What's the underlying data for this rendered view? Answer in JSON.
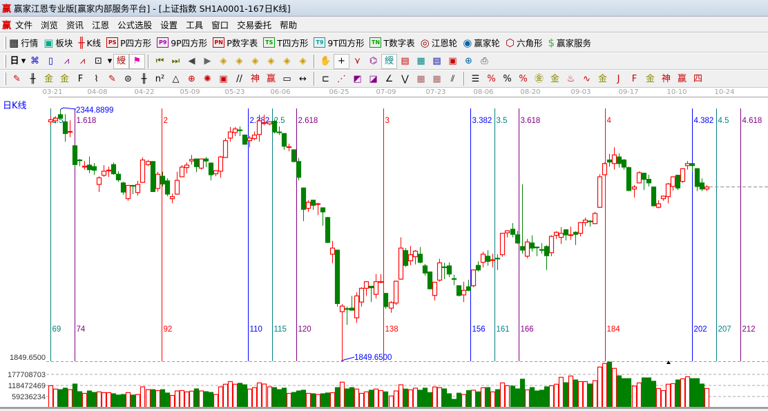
{
  "window": {
    "logo": "赢",
    "title": "赢家江恩专业版[赢家内部服务平台] - [上证指数  SH1A0001-167日K线]"
  },
  "menu": {
    "logo": "赢",
    "items": [
      "文件",
      "浏览",
      "资讯",
      "江恩",
      "公式选股",
      "设置",
      "工具",
      "窗口",
      "交易委托",
      "帮助"
    ]
  },
  "toolbar1": [
    {
      "label": "行情",
      "icon": "quote-table-icon"
    },
    {
      "label": "板块",
      "icon": "sector-grid-icon"
    },
    {
      "label": "K线",
      "icon": "candlestick-icon"
    },
    {
      "label": "P四方形",
      "icon": "ps-icon",
      "badge": "PS",
      "color": "#c00000"
    },
    {
      "label": "9P四方形",
      "icon": "p9-icon",
      "badge": "P9",
      "color": "#a000a0"
    },
    {
      "label": "P数字表",
      "icon": "pn-icon",
      "badge": "PN",
      "color": "#c00000"
    },
    {
      "label": "T四方形",
      "icon": "ts-icon",
      "badge": "TS",
      "color": "#00a000"
    },
    {
      "label": "9T四方形",
      "icon": "t9-icon",
      "badge": "T9",
      "color": "#00a0a0"
    },
    {
      "label": "T数字表",
      "icon": "tn-icon",
      "badge": "TN",
      "color": "#00a000"
    },
    {
      "label": "江恩轮",
      "icon": "gann-wheel-icon"
    },
    {
      "label": "赢家轮",
      "icon": "winner-wheel-icon"
    },
    {
      "label": "六角形",
      "icon": "hexagon-icon"
    },
    {
      "label": "赢家服务",
      "icon": "dollar-icon"
    }
  ],
  "toolbar2": {
    "period_label": "日",
    "icons": [
      "period-dropdown-icon",
      "network-icon",
      "clipboard-icon",
      "wave3-icon",
      "wave9-icon",
      "candle-type-icon",
      "candle-type-dropdown-icon",
      "gann-pressed-icon",
      "flag-pressed-icon",
      "sep",
      "first-bar-icon",
      "last-bar-icon",
      "scroll-left-icon",
      "scroll-right-icon",
      "move-left-icon",
      "move-right-icon",
      "expand-horizontal-icon",
      "shrink-horizontal-icon",
      "expand-all-icon",
      "expand-vertical-icon",
      "sep",
      "hand-icon",
      "crosshair-icon",
      "line-point-icon",
      "magnet-icon",
      "gann-pattern-icon",
      "calendar-icon",
      "calculator-icon",
      "notes-icon",
      "save-icon",
      "network-globe-icon",
      "print-icon"
    ]
  },
  "toolbar3": {
    "icons": [
      "pen-icon",
      "parallel-lines-icon",
      "gold-lines-icon",
      "gold-lines-2-icon",
      "fibonacci-lines-icon",
      "spiral-icon",
      "pen-eraser-icon",
      "circle-lines-icon",
      "vertical-lines-icon",
      "n-squared-icon",
      "triangle-icon",
      "target-icon",
      "radar-icon",
      "square-target-icon",
      "tilted-lines-icon",
      "shen-icon",
      "ying-icon",
      "ruler-icon",
      "width-measure-icon",
      "sep",
      "box-select-icon",
      "fan-lines-icon",
      "square-fan-icon",
      "square-fan-2-icon",
      "angle-icon",
      "zigzag-icon",
      "grid-box-icon",
      "grid-box-2-icon",
      "parallel-diagonal-icon",
      "sep",
      "ladder-icon",
      "percent-line-icon",
      "percent-icon",
      "percent-levels-icon",
      "gold-circle-icon",
      "gold-levels-icon",
      "flame-icon",
      "sine-wave-icon",
      "gold-box-icon",
      "j-angle-icon",
      "f-angle-icon",
      "gold-angle-icon",
      "shen-angle-icon",
      "ying-angle-icon",
      "si-angle-icon"
    ]
  },
  "chart_label": "日K线",
  "dates": [
    "03-21",
    "04-08",
    "04-22",
    "05-09",
    "05-23",
    "06-06",
    "06-25",
    "07-09",
    "07-23",
    "08-06",
    "08-20",
    "09-03",
    "09-17",
    "10-10",
    "10-24"
  ],
  "colors": {
    "up": "#ff0000",
    "down": "#008000",
    "annotation": "#0000ff",
    "grid": "#a0a0a0"
  },
  "chart_data": {
    "type": "candlestick",
    "price_axis": {
      "min_label": "1849.6500"
    },
    "high_annotation": "2344.8899",
    "low_annotation": "1849.6500",
    "high_value": 2344.89,
    "low_value": 1849.65,
    "volume_axis_labels": [
      "177708703",
      "118472469",
      "59236234"
    ],
    "volume_axis_values": [
      177708703,
      118472469,
      59236234
    ],
    "time_lines": [
      {
        "day": "69",
        "ratio": "1.5",
        "color": "#008080"
      },
      {
        "day": "74",
        "ratio": "1.618",
        "color": "#800080"
      },
      {
        "day": "92",
        "ratio": "2",
        "color": "#ff0000"
      },
      {
        "day": "110",
        "ratio": "2.382",
        "color": "#0000ff"
      },
      {
        "day": "115",
        "ratio": "2.5",
        "color": "#008080"
      },
      {
        "day": "120",
        "ratio": "2.618",
        "color": "#800080"
      },
      {
        "day": "138",
        "ratio": "3",
        "color": "#ff0000"
      },
      {
        "day": "156",
        "ratio": "3.382",
        "color": "#0000ff"
      },
      {
        "day": "161",
        "ratio": "3.5",
        "color": "#008080"
      },
      {
        "day": "166",
        "ratio": "3.618",
        "color": "#800080"
      },
      {
        "day": "184",
        "ratio": "4",
        "color": "#ff0000"
      },
      {
        "day": "202",
        "ratio": "4.382",
        "color": "#0000ff"
      },
      {
        "day": "207",
        "ratio": "4.5",
        "color": "#008080"
      },
      {
        "day": "212",
        "ratio": "4.618",
        "color": "#800080"
      }
    ],
    "candles_ohlc": [
      [
        2320,
        2331,
        2313,
        2324
      ],
      [
        2322,
        2331,
        2317,
        2327
      ],
      [
        2334,
        2344.89,
        2326,
        2327
      ],
      [
        2320,
        2335,
        2281,
        2297
      ],
      [
        2300,
        2323,
        2290,
        2301
      ],
      [
        2273,
        2274,
        2232,
        2236
      ],
      [
        2245,
        2247,
        2233,
        2244
      ],
      [
        2231,
        2243,
        2226,
        2233
      ],
      [
        2235,
        2252,
        2219,
        2226
      ],
      [
        2232,
        2239,
        2216,
        2225
      ],
      [
        2197,
        2213,
        2182,
        2210
      ],
      [
        2215,
        2235,
        2212,
        2223
      ],
      [
        2224,
        2232,
        2212,
        2225
      ],
      [
        2236,
        2240,
        2216,
        2218
      ],
      [
        2217,
        2223,
        2202,
        2206
      ],
      [
        2200,
        2202,
        2177,
        2182
      ],
      [
        2169,
        2196,
        2165,
        2195
      ],
      [
        2195,
        2196,
        2178,
        2194
      ],
      [
        2181,
        2204,
        2175,
        2197
      ],
      [
        2201,
        2250,
        2200,
        2245
      ],
      [
        2236,
        2245,
        2233,
        2242
      ],
      [
        2242,
        2243,
        2182,
        2183
      ],
      [
        2189,
        2222,
        2183,
        2217
      ],
      [
        2213,
        2222,
        2193,
        2198
      ],
      [
        2204,
        2209,
        2174,
        2178
      ],
      [
        2169,
        2179,
        2160,
        2173
      ],
      [
        2178,
        2222,
        2177,
        2205
      ],
      [
        2212,
        2235,
        2211,
        2231
      ],
      [
        2230,
        2240,
        2219,
        2235
      ],
      [
        2243,
        2255,
        2236,
        2246
      ],
      [
        2247,
        2248,
        2221,
        2232
      ],
      [
        2229,
        2248,
        2226,
        2247
      ],
      [
        2247,
        2251,
        2231,
        2243
      ],
      [
        2239,
        2240,
        2205,
        2216
      ],
      [
        2218,
        2225,
        2213,
        2224
      ],
      [
        2223,
        2253,
        2210,
        2251
      ],
      [
        2250,
        2288,
        2249,
        2283
      ],
      [
        2288,
        2310,
        2281,
        2300
      ],
      [
        2299,
        2310,
        2292,
        2306
      ],
      [
        2304,
        2311,
        2292,
        2303
      ],
      [
        2294,
        2295,
        2275,
        2276
      ],
      [
        2283,
        2292,
        2270,
        2288
      ],
      [
        2287,
        2301,
        2284,
        2294
      ],
      [
        2295,
        2334,
        2281,
        2322
      ],
      [
        2317,
        2334,
        2313,
        2318
      ],
      [
        2316,
        2321,
        2313,
        2320
      ],
      [
        2321,
        2325,
        2297,
        2300
      ],
      [
        2300,
        2311,
        2294,
        2299
      ],
      [
        2297,
        2298,
        2265,
        2272
      ],
      [
        2270,
        2277,
        2262,
        2271
      ],
      [
        2265,
        2266,
        2240,
        2242
      ],
      [
        2242,
        2249,
        2205,
        2211
      ],
      [
        2190,
        2191,
        2125,
        2148
      ],
      [
        2150,
        2166,
        2143,
        2162
      ],
      [
        2166,
        2167,
        2147,
        2156
      ],
      [
        2158,
        2161,
        2137,
        2159
      ],
      [
        2151,
        2152,
        2116,
        2143
      ],
      [
        2132,
        2133,
        2082,
        2083
      ],
      [
        2060,
        2086,
        2042,
        2072
      ],
      [
        2068,
        2069,
        1957,
        1963
      ],
      [
        1947,
        1962,
        1849.65,
        1958
      ],
      [
        1953,
        1957,
        1921,
        1952
      ],
      [
        1954,
        1978,
        1950,
        1950
      ],
      [
        1935,
        1985,
        1925,
        1978
      ],
      [
        1966,
        1995,
        1957,
        1993
      ],
      [
        1993,
        2007,
        1978,
        2006
      ],
      [
        1997,
        1997,
        1966,
        1994
      ],
      [
        1981,
        2021,
        1973,
        2006
      ],
      [
        2005,
        2021,
        2003,
        2006
      ],
      [
        1983,
        1984,
        1953,
        1957
      ],
      [
        1954,
        1968,
        1945,
        1965
      ],
      [
        1964,
        2008,
        1960,
        2007
      ],
      [
        2011,
        2093,
        2010,
        2072
      ],
      [
        2067,
        2072,
        2035,
        2038
      ],
      [
        2047,
        2076,
        2038,
        2059
      ],
      [
        2055,
        2068,
        2040,
        2066
      ],
      [
        2060,
        2074,
        2042,
        2044
      ],
      [
        2037,
        2041,
        2018,
        2023
      ],
      [
        2025,
        2026,
        1991,
        1992
      ],
      [
        1979,
        2005,
        1969,
        2005
      ],
      [
        2009,
        2051,
        2006,
        2043
      ],
      [
        2035,
        2043,
        2011,
        2034
      ],
      [
        2037,
        2044,
        2015,
        2021
      ],
      [
        2012,
        2020,
        1999,
        2011
      ],
      [
        1998,
        1998,
        1977,
        1979
      ],
      [
        1980,
        2006,
        1966,
        1989
      ],
      [
        1996,
        2010,
        1987,
        1989
      ],
      [
        1998,
        2030,
        1995,
        2029
      ],
      [
        2038,
        2046,
        2026,
        2029
      ],
      [
        2044,
        2065,
        2034,
        2060
      ],
      [
        2056,
        2068,
        2037,
        2046
      ],
      [
        2048,
        2061,
        2034,
        2049
      ],
      [
        2052,
        2060,
        2029,
        2051
      ],
      [
        2059,
        2102,
        2055,
        2101
      ],
      [
        2102,
        2107,
        2093,
        2106
      ],
      [
        2109,
        2121,
        2093,
        2099
      ],
      [
        2098,
        2106,
        2080,
        2082
      ],
      [
        2075,
        2197,
        2061,
        2068
      ],
      [
        2056,
        2090,
        2052,
        2084
      ],
      [
        2082,
        2097,
        2065,
        2072
      ],
      [
        2074,
        2074,
        2056,
        2073
      ],
      [
        2069,
        2082,
        2061,
        2068
      ],
      [
        2075,
        2078,
        2029,
        2057
      ],
      [
        2063,
        2097,
        2056,
        2095
      ],
      [
        2097,
        2105,
        2090,
        2103
      ],
      [
        2093,
        2113,
        2080,
        2101
      ],
      [
        2108,
        2109,
        2087,
        2098
      ],
      [
        2097,
        2114,
        2088,
        2098
      ],
      [
        2103,
        2105,
        2078,
        2099
      ],
      [
        2101,
        2123,
        2095,
        2122
      ],
      [
        2122,
        2132,
        2115,
        2127
      ],
      [
        2125,
        2127,
        2114,
        2124
      ],
      [
        2120,
        2143,
        2119,
        2140
      ],
      [
        2152,
        2217,
        2151,
        2212
      ],
      [
        2216,
        2240,
        2215,
        2238
      ],
      [
        2245,
        2257,
        2232,
        2241
      ],
      [
        2238,
        2270,
        2226,
        2255
      ],
      [
        2251,
        2258,
        2230,
        2238
      ],
      [
        2245,
        2247,
        2226,
        2231
      ],
      [
        2230,
        2232,
        2184,
        2185
      ],
      [
        2188,
        2196,
        2171,
        2192
      ],
      [
        2200,
        2223,
        2199,
        2220
      ],
      [
        2219,
        2220,
        2186,
        2207
      ],
      [
        2207,
        2216,
        2193,
        2200
      ],
      [
        2192,
        2193,
        2154,
        2155
      ],
      [
        2152,
        2166,
        2150,
        2159
      ],
      [
        2169,
        2175,
        2165,
        2174
      ],
      [
        2173,
        2200,
        2160,
        2198
      ],
      [
        2193,
        2213,
        2185,
        2212
      ],
      [
        2215,
        2216,
        2186,
        2190
      ],
      [
        2203,
        2229,
        2200,
        2228
      ],
      [
        2234,
        2243,
        2226,
        2238
      ],
      [
        2238,
        2239,
        2221,
        2234
      ],
      [
        2228,
        2229,
        2184,
        2193
      ],
      [
        2200,
        2209,
        2184,
        2188
      ],
      [
        2188,
        2196,
        2184,
        2192
      ]
    ],
    "volumes": [
      117000000,
      99000000,
      96000000,
      104000000,
      96000000,
      126000000,
      85000000,
      76000000,
      89000000,
      81000000,
      84000000,
      80000000,
      80000000,
      74000000,
      67000000,
      70000000,
      80000000,
      67000000,
      70000000,
      111000000,
      96000000,
      96000000,
      91000000,
      96000000,
      78000000,
      65000000,
      89000000,
      91000000,
      84000000,
      88000000,
      100000000,
      89000000,
      85000000,
      81000000,
      70000000,
      111000000,
      125000000,
      139000000,
      125000000,
      130000000,
      122000000,
      99000000,
      107000000,
      132000000,
      126000000,
      111000000,
      107000000,
      96000000,
      104000000,
      76000000,
      81000000,
      89000000,
      93000000,
      76000000,
      74000000,
      70000000,
      74000000,
      78000000,
      80000000,
      107000000,
      136000000,
      100000000,
      107000000,
      99000000,
      76000000,
      84000000,
      93000000,
      99000000,
      91000000,
      84000000,
      62000000,
      89000000,
      122000000,
      99000000,
      95000000,
      104000000,
      93000000,
      104000000,
      80000000,
      110000000,
      107000000,
      100000000,
      74000000,
      44000000,
      77000000,
      70000000,
      91000000,
      93000000,
      84000000,
      106000000,
      107000000,
      84000000,
      96000000,
      132000000,
      117000000,
      115000000,
      100000000,
      152000000,
      95000000,
      107000000,
      89000000,
      93000000,
      111000000,
      117000000,
      125000000,
      162000000,
      133000000,
      169000000,
      148000000,
      139000000,
      139000000,
      126000000,
      144000000,
      217000000,
      236000000,
      244000000,
      210000000,
      170000000,
      155000000,
      155000000,
      115000000,
      132000000,
      159000000,
      159000000,
      141000000,
      102000000,
      91000000,
      125000000,
      128000000,
      148000000,
      154000000,
      165000000,
      155000000,
      155000000,
      126000000,
      102000000
    ]
  }
}
